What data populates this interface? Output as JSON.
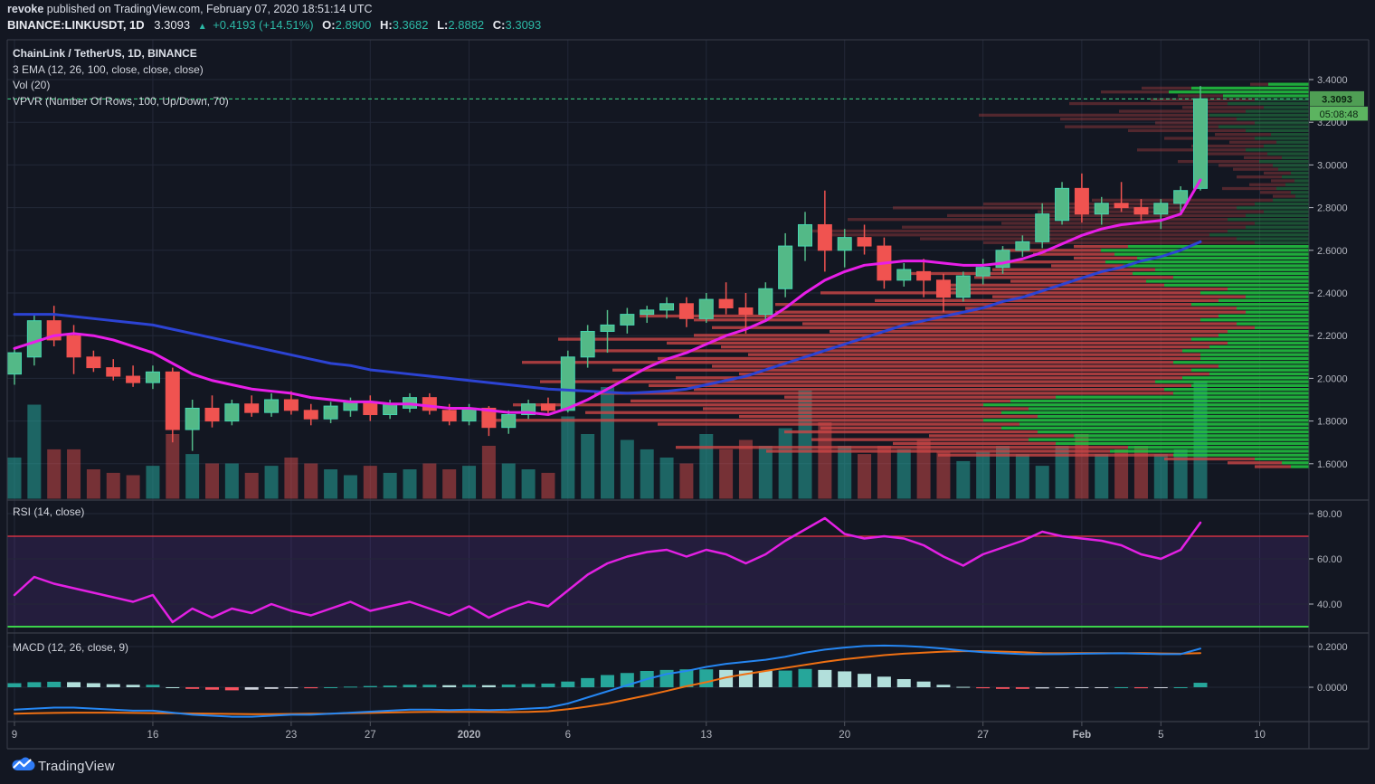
{
  "header": {
    "author": "revoke",
    "publish_line": " published on TradingView.com, February 07, 2020 18:51:14 UTC",
    "symbol": "BINANCE:LINKUSDT, 1D",
    "last": "3.3093",
    "arrow": "▲",
    "change": "+0.4193 (+14.51%)",
    "o_label": "O:",
    "o": "2.8900",
    "h_label": "H:",
    "h": "3.3682",
    "l_label": "L:",
    "l": "2.8882",
    "c_label": "C:",
    "c": "3.3093"
  },
  "legend": {
    "title": "ChainLink / TetherUS, 1D, BINANCE",
    "ema": "3 EMA (12, 26, 100, close, close, close)",
    "vol": "Vol (20)",
    "vpvr": "VPVR (Number Of Rows, 100, Up/Down, 70)",
    "rsi": "RSI (14, close)",
    "macd": "MACD (12, 26, close, 9)"
  },
  "footer": {
    "brand": "TradingView"
  },
  "colors": {
    "bg": "#131722",
    "grid": "#232838",
    "border": "#3a3e4a",
    "axis_text": "#b2b5be",
    "up": "#53b987",
    "up_edge": "#45d6b0",
    "down": "#f05350",
    "ema_fast": "#e81ee8",
    "ema_slow": "#2c43d3",
    "vol_up": "rgba(38,166,154,0.55)",
    "vol_down": "rgba(239,83,80,0.45)",
    "last_line": "#3edd87",
    "badge": "#4f9e54",
    "badge2": "#5cb460",
    "badge_text": "#0c2412",
    "rsi_line": "#e320e3",
    "rsi_band": "rgba(156,66,245,0.13)",
    "rsi_upper": "#f23645",
    "rsi_lower": "#3cd24b",
    "macd_line": "#2586f2",
    "macd_signal": "#ef7013",
    "hist_pos": "#26a69a",
    "hist_pos_fade": "#b2dfdb",
    "hist_neg": "#f7525f",
    "hist_neg_fade": "#cfd3dc",
    "vpvr_green_bright": "rgba(34,197,63,0.85)",
    "vpvr_green_dim": "rgba(38,140,70,0.5)",
    "vpvr_red_bright": "rgba(204,70,70,0.8)",
    "vpvr_red_dim": "rgba(160,60,62,0.45)"
  },
  "chart_data": {
    "type": "candlestick",
    "title": "ChainLink / TetherUS, 1D, BINANCE",
    "price_axis": [
      [
        "3.4000",
        3.4
      ],
      [
        "3.2000",
        3.2
      ],
      [
        "3.0000",
        3.0
      ],
      [
        "2.8000",
        2.8
      ],
      [
        "2.6000",
        2.6
      ],
      [
        "2.4000",
        2.4
      ],
      [
        "2.2000",
        2.2
      ],
      [
        "2.0000",
        2.0
      ],
      [
        "1.8000",
        1.8
      ],
      [
        "1.6000",
        1.6
      ]
    ],
    "time_axis": [
      {
        "label": "9",
        "i": 0,
        "bold": false
      },
      {
        "label": "16",
        "i": 7,
        "bold": false
      },
      {
        "label": "23",
        "i": 14,
        "bold": false
      },
      {
        "label": "27",
        "i": 18,
        "bold": false
      },
      {
        "label": "2020",
        "i": 23,
        "bold": true
      },
      {
        "label": "6",
        "i": 28,
        "bold": false
      },
      {
        "label": "13",
        "i": 35,
        "bold": false
      },
      {
        "label": "20",
        "i": 42,
        "bold": false
      },
      {
        "label": "27",
        "i": 49,
        "bold": false
      },
      {
        "label": "Feb",
        "i": 54,
        "bold": true
      },
      {
        "label": "5",
        "i": 58,
        "bold": false
      },
      {
        "label": "10",
        "i": 63,
        "bold": false
      }
    ],
    "last_price": {
      "value": 3.3093,
      "label": "3.3093",
      "countdown": "05:08:48"
    },
    "candles": [
      [
        2.02,
        2.14,
        1.97,
        2.12
      ],
      [
        2.1,
        2.3,
        2.06,
        2.27
      ],
      [
        2.27,
        2.34,
        2.15,
        2.18
      ],
      [
        2.2,
        2.25,
        2.02,
        2.1
      ],
      [
        2.1,
        2.13,
        2.03,
        2.05
      ],
      [
        2.05,
        2.09,
        1.99,
        2.01
      ],
      [
        2.01,
        2.06,
        1.96,
        1.98
      ],
      [
        1.98,
        2.06,
        1.95,
        2.03
      ],
      [
        2.03,
        2.05,
        1.7,
        1.76
      ],
      [
        1.76,
        1.9,
        1.66,
        1.86
      ],
      [
        1.86,
        1.92,
        1.77,
        1.8
      ],
      [
        1.8,
        1.9,
        1.78,
        1.88
      ],
      [
        1.88,
        1.92,
        1.82,
        1.84
      ],
      [
        1.84,
        1.93,
        1.82,
        1.9
      ],
      [
        1.9,
        1.94,
        1.83,
        1.85
      ],
      [
        1.85,
        1.88,
        1.78,
        1.81
      ],
      [
        1.81,
        1.89,
        1.79,
        1.87
      ],
      [
        1.85,
        1.91,
        1.82,
        1.89
      ],
      [
        1.89,
        1.92,
        1.8,
        1.83
      ],
      [
        1.83,
        1.9,
        1.81,
        1.88
      ],
      [
        1.86,
        1.93,
        1.84,
        1.91
      ],
      [
        1.91,
        1.93,
        1.83,
        1.85
      ],
      [
        1.85,
        1.88,
        1.78,
        1.8
      ],
      [
        1.8,
        1.88,
        1.78,
        1.86
      ],
      [
        1.86,
        1.87,
        1.73,
        1.77
      ],
      [
        1.77,
        1.85,
        1.74,
        1.83
      ],
      [
        1.83,
        1.9,
        1.81,
        1.88
      ],
      [
        1.88,
        1.91,
        1.83,
        1.85
      ],
      [
        1.85,
        2.13,
        1.84,
        2.1
      ],
      [
        2.1,
        2.25,
        2.05,
        2.22
      ],
      [
        2.22,
        2.32,
        2.12,
        2.25
      ],
      [
        2.25,
        2.33,
        2.21,
        2.3
      ],
      [
        2.3,
        2.34,
        2.26,
        2.32
      ],
      [
        2.32,
        2.38,
        2.28,
        2.35
      ],
      [
        2.35,
        2.38,
        2.24,
        2.28
      ],
      [
        2.28,
        2.4,
        2.26,
        2.37
      ],
      [
        2.37,
        2.45,
        2.3,
        2.33
      ],
      [
        2.33,
        2.4,
        2.21,
        2.3
      ],
      [
        2.3,
        2.45,
        2.27,
        2.42
      ],
      [
        2.42,
        2.68,
        2.38,
        2.62
      ],
      [
        2.62,
        2.78,
        2.55,
        2.72
      ],
      [
        2.72,
        2.88,
        2.5,
        2.6
      ],
      [
        2.6,
        2.7,
        2.52,
        2.66
      ],
      [
        2.66,
        2.72,
        2.58,
        2.62
      ],
      [
        2.62,
        2.66,
        2.42,
        2.46
      ],
      [
        2.46,
        2.54,
        2.43,
        2.51
      ],
      [
        2.5,
        2.56,
        2.38,
        2.46
      ],
      [
        2.46,
        2.49,
        2.31,
        2.38
      ],
      [
        2.38,
        2.5,
        2.36,
        2.48
      ],
      [
        2.48,
        2.56,
        2.44,
        2.52
      ],
      [
        2.52,
        2.62,
        2.49,
        2.6
      ],
      [
        2.6,
        2.67,
        2.57,
        2.64
      ],
      [
        2.64,
        2.82,
        2.61,
        2.77
      ],
      [
        2.74,
        2.92,
        2.72,
        2.89
      ],
      [
        2.89,
        2.96,
        2.73,
        2.77
      ],
      [
        2.77,
        2.85,
        2.72,
        2.82
      ],
      [
        2.82,
        2.92,
        2.78,
        2.8
      ],
      [
        2.8,
        2.84,
        2.74,
        2.77
      ],
      [
        2.77,
        2.84,
        2.7,
        2.82
      ],
      [
        2.82,
        2.9,
        2.78,
        2.88
      ],
      [
        2.89,
        3.37,
        2.88,
        3.31
      ]
    ],
    "volume": [
      0.35,
      0.8,
      0.42,
      0.42,
      0.25,
      0.22,
      0.2,
      0.28,
      0.55,
      0.38,
      0.3,
      0.3,
      0.22,
      0.28,
      0.35,
      0.3,
      0.25,
      0.2,
      0.28,
      0.22,
      0.25,
      0.3,
      0.25,
      0.28,
      0.45,
      0.3,
      0.25,
      0.22,
      0.7,
      0.55,
      0.95,
      0.5,
      0.42,
      0.35,
      0.3,
      0.55,
      0.42,
      0.5,
      0.45,
      0.6,
      0.92,
      0.65,
      0.45,
      0.38,
      0.45,
      0.42,
      0.5,
      0.4,
      0.32,
      0.4,
      0.45,
      0.38,
      0.28,
      0.45,
      0.55,
      0.38,
      0.42,
      0.45,
      0.38,
      0.42,
      1.0
    ],
    "ema_fast": [
      2.14,
      2.17,
      2.2,
      2.21,
      2.2,
      2.18,
      2.15,
      2.12,
      2.07,
      2.02,
      1.99,
      1.97,
      1.95,
      1.94,
      1.93,
      1.91,
      1.9,
      1.89,
      1.89,
      1.88,
      1.88,
      1.87,
      1.86,
      1.86,
      1.85,
      1.84,
      1.84,
      1.83,
      1.86,
      1.9,
      1.95,
      2.0,
      2.05,
      2.09,
      2.12,
      2.16,
      2.2,
      2.23,
      2.27,
      2.33,
      2.4,
      2.46,
      2.5,
      2.53,
      2.54,
      2.55,
      2.55,
      2.54,
      2.53,
      2.53,
      2.54,
      2.56,
      2.59,
      2.63,
      2.67,
      2.7,
      2.72,
      2.73,
      2.74,
      2.77,
      2.93
    ],
    "ema_slow": [
      2.3,
      2.3,
      2.3,
      2.29,
      2.28,
      2.27,
      2.26,
      2.25,
      2.23,
      2.21,
      2.19,
      2.17,
      2.15,
      2.13,
      2.11,
      2.09,
      2.07,
      2.06,
      2.04,
      2.03,
      2.02,
      2.01,
      2.0,
      1.99,
      1.98,
      1.97,
      1.96,
      1.95,
      1.945,
      1.94,
      1.935,
      1.93,
      1.935,
      1.94,
      1.95,
      1.97,
      1.99,
      2.01,
      2.04,
      2.07,
      2.1,
      2.13,
      2.16,
      2.19,
      2.22,
      2.25,
      2.27,
      2.29,
      2.31,
      2.33,
      2.36,
      2.38,
      2.41,
      2.44,
      2.47,
      2.5,
      2.52,
      2.55,
      2.57,
      2.6,
      2.64
    ],
    "rsi": {
      "values": [
        44,
        52,
        49,
        47,
        45,
        43,
        41,
        44,
        32,
        38,
        34,
        38,
        36,
        40,
        37,
        35,
        38,
        41,
        37,
        39,
        41,
        38,
        35,
        39,
        34,
        38,
        41,
        39,
        46,
        53,
        58,
        61,
        63,
        64,
        61,
        64,
        62,
        58,
        62,
        68,
        73,
        78,
        71,
        69,
        70,
        69,
        66,
        61,
        57,
        62,
        65,
        68,
        72,
        70,
        69,
        68,
        66,
        62,
        60,
        64,
        76
      ],
      "upper": 70,
      "lower": 30,
      "axis": [
        [
          "80.00",
          80
        ],
        [
          "60.00",
          60
        ],
        [
          "40.00",
          40
        ]
      ]
    },
    "macd": {
      "axis": [
        [
          "0.2000",
          0.2
        ],
        [
          "0.0000",
          0.0
        ]
      ],
      "hist": [
        0.02,
        0.025,
        0.027,
        0.025,
        0.02,
        0.015,
        0.012,
        0.012,
        0.0,
        -0.008,
        -0.012,
        -0.015,
        -0.012,
        -0.008,
        -0.005,
        -0.005,
        0.0,
        0.003,
        0.006,
        0.008,
        0.012,
        0.012,
        0.01,
        0.012,
        0.01,
        0.013,
        0.016,
        0.018,
        0.028,
        0.045,
        0.06,
        0.07,
        0.08,
        0.085,
        0.088,
        0.088,
        0.085,
        0.082,
        0.08,
        0.082,
        0.09,
        0.085,
        0.078,
        0.066,
        0.052,
        0.04,
        0.028,
        0.012,
        0.002,
        -0.005,
        -0.008,
        -0.008,
        -0.006,
        -0.004,
        -0.003,
        -0.002,
        0.0,
        -0.005,
        -0.003,
        0.0,
        0.022
      ],
      "macd": [
        -0.11,
        -0.105,
        -0.1,
        -0.1,
        -0.105,
        -0.11,
        -0.115,
        -0.115,
        -0.125,
        -0.135,
        -0.14,
        -0.145,
        -0.145,
        -0.14,
        -0.135,
        -0.135,
        -0.13,
        -0.125,
        -0.12,
        -0.115,
        -0.11,
        -0.11,
        -0.112,
        -0.11,
        -0.112,
        -0.11,
        -0.105,
        -0.1,
        -0.08,
        -0.05,
        -0.02,
        0.01,
        0.04,
        0.065,
        0.08,
        0.1,
        0.115,
        0.125,
        0.135,
        0.15,
        0.17,
        0.185,
        0.195,
        0.203,
        0.205,
        0.203,
        0.198,
        0.19,
        0.18,
        0.172,
        0.167,
        0.163,
        0.162,
        0.163,
        0.165,
        0.166,
        0.167,
        0.165,
        0.163,
        0.163,
        0.19
      ],
      "signal": [
        -0.13,
        -0.128,
        -0.126,
        -0.125,
        -0.125,
        -0.125,
        -0.126,
        -0.127,
        -0.128,
        -0.129,
        -0.13,
        -0.131,
        -0.132,
        -0.132,
        -0.131,
        -0.13,
        -0.13,
        -0.128,
        -0.126,
        -0.124,
        -0.122,
        -0.121,
        -0.121,
        -0.121,
        -0.121,
        -0.122,
        -0.121,
        -0.118,
        -0.108,
        -0.095,
        -0.08,
        -0.06,
        -0.04,
        -0.018,
        0.005,
        0.025,
        0.048,
        0.065,
        0.08,
        0.095,
        0.11,
        0.125,
        0.138,
        0.148,
        0.158,
        0.165,
        0.17,
        0.175,
        0.177,
        0.177,
        0.175,
        0.172,
        0.168,
        0.167,
        0.168,
        0.168,
        0.167,
        0.168,
        0.166,
        0.165,
        0.168
      ]
    },
    "vpvr": {
      "price_top": 3.385,
      "price_bottom": 1.575,
      "bright_from_row": 42,
      "top_bright_rows": 4,
      "rows": [
        [
          45,
          20
        ],
        [
          130,
          55
        ],
        [
          155,
          75
        ],
        [
          95,
          50
        ],
        [
          60,
          115
        ],
        [
          90,
          175
        ],
        [
          50,
          90
        ],
        [
          70,
          140
        ],
        [
          110,
          255
        ],
        [
          80,
          195
        ],
        [
          60,
          110
        ],
        [
          100,
          170
        ],
        [
          70,
          130
        ],
        [
          42,
          62
        ],
        [
          60,
          100
        ],
        [
          36,
          52
        ],
        [
          50,
          80
        ],
        [
          70,
          120
        ],
        [
          46,
          70
        ],
        [
          30,
          42
        ],
        [
          55,
          90
        ],
        [
          40,
          60
        ],
        [
          34,
          50
        ],
        [
          20,
          30
        ],
        [
          30,
          50
        ],
        [
          16,
          26
        ],
        [
          26,
          40
        ],
        [
          36,
          60
        ],
        [
          20,
          34
        ],
        [
          15,
          25
        ],
        [
          40,
          200
        ],
        [
          60,
          300
        ],
        [
          80,
          380
        ],
        [
          50,
          250
        ],
        [
          70,
          330
        ],
        [
          90,
          420
        ],
        [
          60,
          280
        ],
        [
          70,
          380
        ],
        [
          90,
          470
        ],
        [
          110,
          420
        ],
        [
          80,
          350
        ],
        [
          60,
          300
        ],
        [
          200,
          60
        ],
        [
          230,
          110
        ],
        [
          215,
          90
        ],
        [
          190,
          70
        ],
        [
          225,
          120
        ],
        [
          205,
          80
        ],
        [
          170,
          180
        ],
        [
          195,
          260
        ],
        [
          150,
          220
        ],
        [
          180,
          150
        ],
        [
          160,
          240
        ],
        [
          90,
          320
        ],
        [
          120,
          420
        ],
        [
          70,
          280
        ],
        [
          100,
          380
        ],
        [
          130,
          460
        ],
        [
          80,
          300
        ],
        [
          70,
          520
        ],
        [
          100,
          640
        ],
        [
          120,
          560
        ],
        [
          80,
          480
        ],
        [
          60,
          600
        ],
        [
          90,
          440
        ],
        [
          100,
          580
        ],
        [
          130,
          700
        ],
        [
          90,
          620
        ],
        [
          110,
          540
        ],
        [
          140,
          660
        ],
        [
          120,
          500
        ],
        [
          120,
          600
        ],
        [
          150,
          720
        ],
        [
          100,
          560
        ],
        [
          130,
          640
        ],
        [
          110,
          520
        ],
        [
          140,
          560
        ],
        [
          170,
          680
        ],
        [
          130,
          600
        ],
        [
          160,
          520
        ],
        [
          150,
          640
        ],
        [
          280,
          300
        ],
        [
          330,
          420
        ],
        [
          360,
          520
        ],
        [
          310,
          360
        ],
        [
          340,
          460
        ],
        [
          300,
          330
        ],
        [
          360,
          540
        ],
        [
          320,
          400
        ],
        [
          340,
          200
        ],
        [
          300,
          280
        ],
        [
          260,
          160
        ],
        [
          310,
          240
        ],
        [
          280,
          180
        ],
        [
          200,
          500
        ],
        [
          220,
          380
        ],
        [
          150,
          260
        ],
        [
          60,
          100
        ],
        [
          30,
          60
        ],
        [
          20,
          40
        ]
      ]
    }
  }
}
